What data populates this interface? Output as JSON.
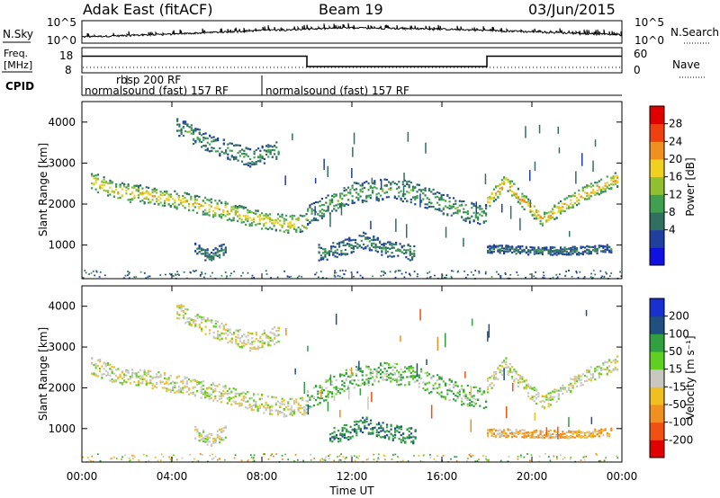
{
  "header": {
    "radar": "Adak East (fitACF)",
    "beam": "Beam 19",
    "date": "03/Jun/2015"
  },
  "strips": {
    "nsky_label": "N.Sky",
    "nsearch_label": "N.Search",
    "nsky_ticks": [
      "10^5",
      "10^0"
    ],
    "nsearch_ticks": [
      "10^5",
      "10^0"
    ],
    "freq_label_line1": "Freq.",
    "freq_label_line2": "[MHz]",
    "freq_ticks": [
      "18",
      "8"
    ],
    "nave_label": "Nave",
    "nave_ticks": [
      "60",
      "0"
    ],
    "cpid_label": "CPID",
    "cpid_segments": [
      {
        "name": "rbsp 200 RF"
      },
      {
        "name": "normalsound (fast) 157 RF"
      },
      {
        "name": "normalsound (fast) 157 RF"
      }
    ]
  },
  "axes": {
    "ylabel": "Slant Range [km]",
    "xlabel": "Time UT",
    "x_ticks": [
      "00:00",
      "04:00",
      "08:00",
      "12:00",
      "16:00",
      "20:00",
      "00:00"
    ],
    "y_ticks": [
      "1000",
      "2000",
      "3000",
      "4000"
    ]
  },
  "colorbars": {
    "power_label": "Power [dB]",
    "power_ticks": [
      "28",
      "24",
      "20",
      "16",
      "12",
      "8",
      "4"
    ],
    "power_colors": [
      "#1010e0",
      "#2040a0",
      "#307060",
      "#40a050",
      "#90c030",
      "#f0d020",
      "#f09020",
      "#f04010",
      "#e00000"
    ],
    "velocity_label": "Velocity [m s⁻¹]",
    "velocity_ticks": [
      "200",
      "100",
      "50",
      "15",
      "-15",
      "-50",
      "-100",
      "-200"
    ],
    "velocity_colors": [
      "#1830d0",
      "#205080",
      "#30a040",
      "#60d020",
      "#c8c8c0",
      "#f0c020",
      "#f09020",
      "#f05010",
      "#e00000"
    ]
  },
  "chart_data": [
    {
      "type": "line",
      "title": "N.Sky",
      "x": [
        "00:00",
        "04:00",
        "08:00",
        "12:00",
        "16:00",
        "20:00",
        "24:00"
      ],
      "series": [
        {
          "name": "N.Sky",
          "values": [
            15,
            60,
            400,
            1500,
            800,
            200,
            40
          ]
        }
      ],
      "ylim": [
        1,
        100000
      ]
    },
    {
      "type": "line",
      "title": "Freq.",
      "x": [
        "00:00",
        "10:00",
        "10:00",
        "18:00",
        "18:00",
        "24:00"
      ],
      "series": [
        {
          "name": "Freq.",
          "values": [
            14.6,
            14.6,
            10.5,
            10.5,
            14.6,
            14.6
          ]
        }
      ],
      "ylim": [
        8,
        18
      ]
    },
    {
      "type": "heatmap",
      "title": "Power [dB]",
      "xlim": [
        0,
        24
      ],
      "ylim": [
        180,
        4500
      ],
      "zlim": [
        0,
        32
      ],
      "bands": [
        {
          "t": [
            0.4,
            1.5,
            3.0,
            5.0,
            6.5,
            8.0,
            9.0,
            10.0
          ],
          "r": [
            2550,
            2300,
            2200,
            2000,
            1800,
            1600,
            1500,
            1550
          ],
          "w": 220,
          "p": 14
        },
        {
          "t": [
            10.0,
            11.0,
            12.0,
            13.5,
            14.5,
            15.5,
            17.0,
            18.0
          ],
          "r": [
            1700,
            2000,
            2250,
            2350,
            2300,
            2100,
            1800,
            1700
          ],
          "w": 260,
          "p": 9
        },
        {
          "t": [
            18.0,
            18.8,
            19.5,
            20.5,
            21.5,
            22.5,
            23.8
          ],
          "r": [
            2050,
            2550,
            2100,
            1600,
            2000,
            2300,
            2600
          ],
          "w": 180,
          "p": 16
        },
        {
          "t": [
            4.2,
            5.5,
            6.5,
            7.5,
            8.7
          ],
          "r": [
            3900,
            3500,
            3300,
            3100,
            3300
          ],
          "w": 220,
          "p": 8
        },
        {
          "t": [
            10.5,
            11.5,
            12.5,
            13.5,
            14.8
          ],
          "r": [
            800,
            900,
            1100,
            900,
            800
          ],
          "w": 200,
          "p": 7
        },
        {
          "t": [
            5.0,
            5.7,
            6.4
          ],
          "r": [
            900,
            700,
            900
          ],
          "w": 160,
          "p": 6
        },
        {
          "t": [
            18.0,
            20.0,
            22.0,
            23.5
          ],
          "r": [
            900,
            850,
            850,
            900
          ],
          "w": 100,
          "p": 6
        }
      ]
    },
    {
      "type": "heatmap",
      "title": "Velocity [m s⁻¹]",
      "xlim": [
        0,
        24
      ],
      "ylim": [
        180,
        4500
      ],
      "zlim": [
        -200,
        200
      ],
      "bands": [
        {
          "t": [
            0.4,
            1.5,
            3.0,
            5.0,
            6.5,
            8.0,
            9.0,
            10.0
          ],
          "r": [
            2550,
            2300,
            2200,
            2000,
            1800,
            1600,
            1500,
            1550
          ],
          "w": 220,
          "v": 0
        },
        {
          "t": [
            10.0,
            11.0,
            12.0,
            13.5,
            14.5,
            15.5,
            17.0,
            18.0
          ],
          "r": [
            1700,
            2000,
            2250,
            2350,
            2300,
            2100,
            1800,
            1700
          ],
          "w": 260,
          "v": 30
        },
        {
          "t": [
            18.0,
            18.8,
            19.5,
            20.5,
            21.5,
            22.5,
            23.8
          ],
          "r": [
            2050,
            2550,
            2100,
            1600,
            2000,
            2300,
            2600
          ],
          "w": 180,
          "v": 0
        },
        {
          "t": [
            4.2,
            5.5,
            6.5,
            7.5,
            8.7
          ],
          "r": [
            3900,
            3500,
            3300,
            3100,
            3300
          ],
          "w": 220,
          "v": 0
        },
        {
          "t": [
            11.0,
            11.8,
            12.5,
            13.5,
            14.8
          ],
          "r": [
            800,
            900,
            1100,
            900,
            800
          ],
          "w": 200,
          "v": 70
        },
        {
          "t": [
            5.0,
            5.7,
            6.4
          ],
          "r": [
            900,
            700,
            900
          ],
          "w": 160,
          "v": 0
        },
        {
          "t": [
            18.0,
            20.0,
            22.0,
            23.5
          ],
          "r": [
            900,
            850,
            850,
            900
          ],
          "w": 100,
          "v": -30
        }
      ]
    }
  ]
}
